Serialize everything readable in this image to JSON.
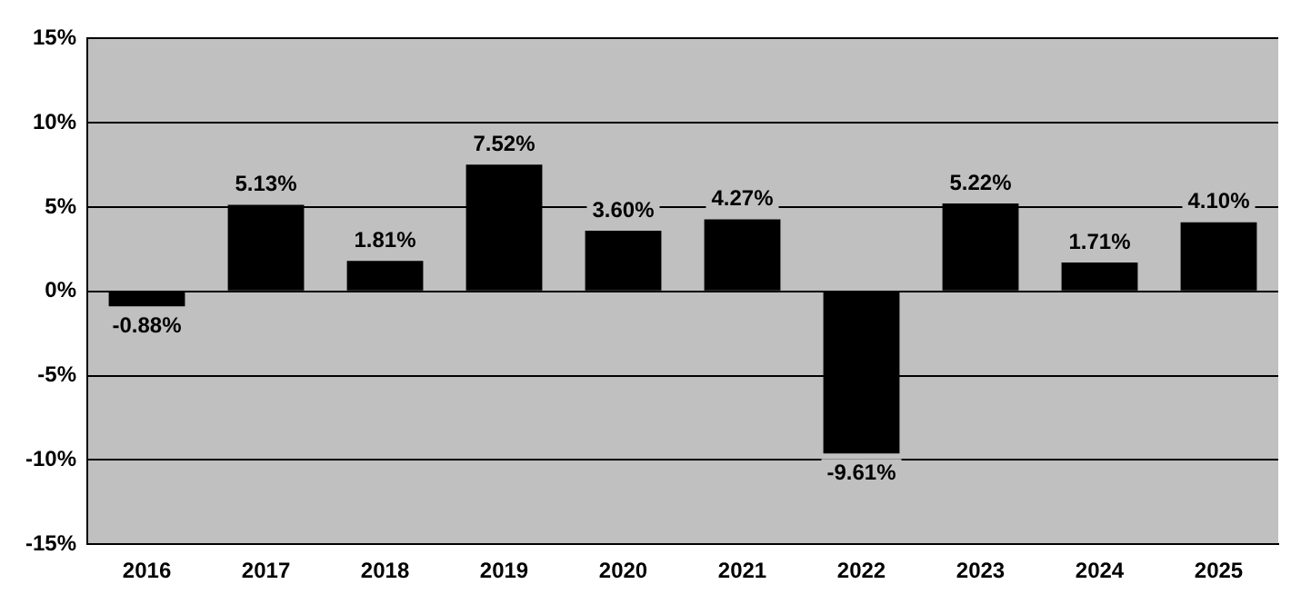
{
  "chart_data": {
    "type": "bar",
    "categories": [
      "2016",
      "2017",
      "2018",
      "2019",
      "2020",
      "2021",
      "2022",
      "2023",
      "2024",
      "2025"
    ],
    "series": [
      {
        "color": "#000000",
        "values": [
          -0.88,
          5.13,
          1.81,
          7.52,
          3.6,
          4.27,
          -9.61,
          5.22,
          1.71,
          4.1
        ],
        "value_labels": [
          "-0.88%",
          "5.13%",
          "1.81%",
          "7.52%",
          "3.60%",
          "4.27%",
          "-9.61%",
          "5.22%",
          "1.71%",
          "4.10%"
        ]
      }
    ],
    "ylim": [
      -15,
      15
    ],
    "yticks": [
      {
        "value": -15,
        "label": "-15%"
      },
      {
        "value": -10,
        "label": "-10%"
      },
      {
        "value": -5,
        "label": "-5%"
      },
      {
        "value": 0,
        "label": "0%"
      },
      {
        "value": 5,
        "label": "5%"
      },
      {
        "value": 10,
        "label": "10%"
      },
      {
        "value": 15,
        "label": "15%"
      }
    ],
    "grid": "y",
    "legend": false
  }
}
